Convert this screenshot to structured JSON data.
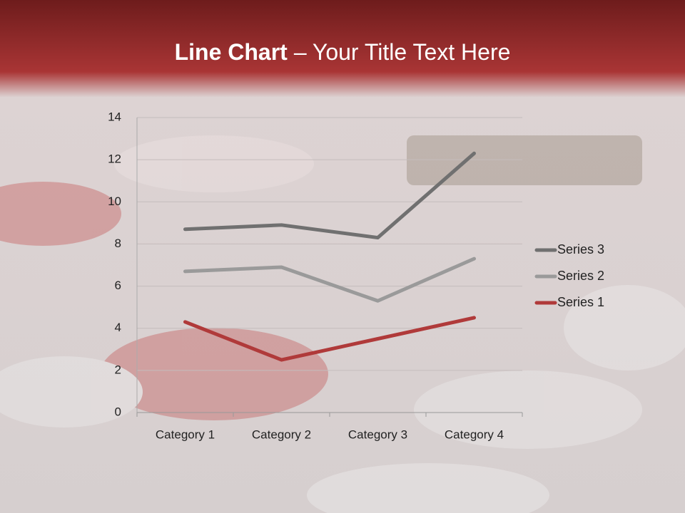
{
  "chart_data": {
    "type": "line",
    "stacked": true,
    "title": [
      "Line Chart",
      "– Your Title Text Here"
    ],
    "categories": [
      "Category 1",
      "Category 2",
      "Category 3",
      "Category 4"
    ],
    "series": [
      {
        "name": "Series 1",
        "color": "#b03a3a",
        "values": [
          4.3,
          2.5,
          3.5,
          4.5
        ]
      },
      {
        "name": "Series 2",
        "color": "#9a9a9a",
        "values": [
          2.4,
          4.4,
          1.8,
          2.8
        ]
      },
      {
        "name": "Series 3",
        "color": "#707070",
        "values": [
          2,
          2,
          3,
          5
        ]
      }
    ],
    "ylim": [
      0,
      14
    ],
    "yticks": [
      0,
      2,
      4,
      6,
      8,
      10,
      12,
      14
    ],
    "grid": true,
    "legend": "right"
  }
}
